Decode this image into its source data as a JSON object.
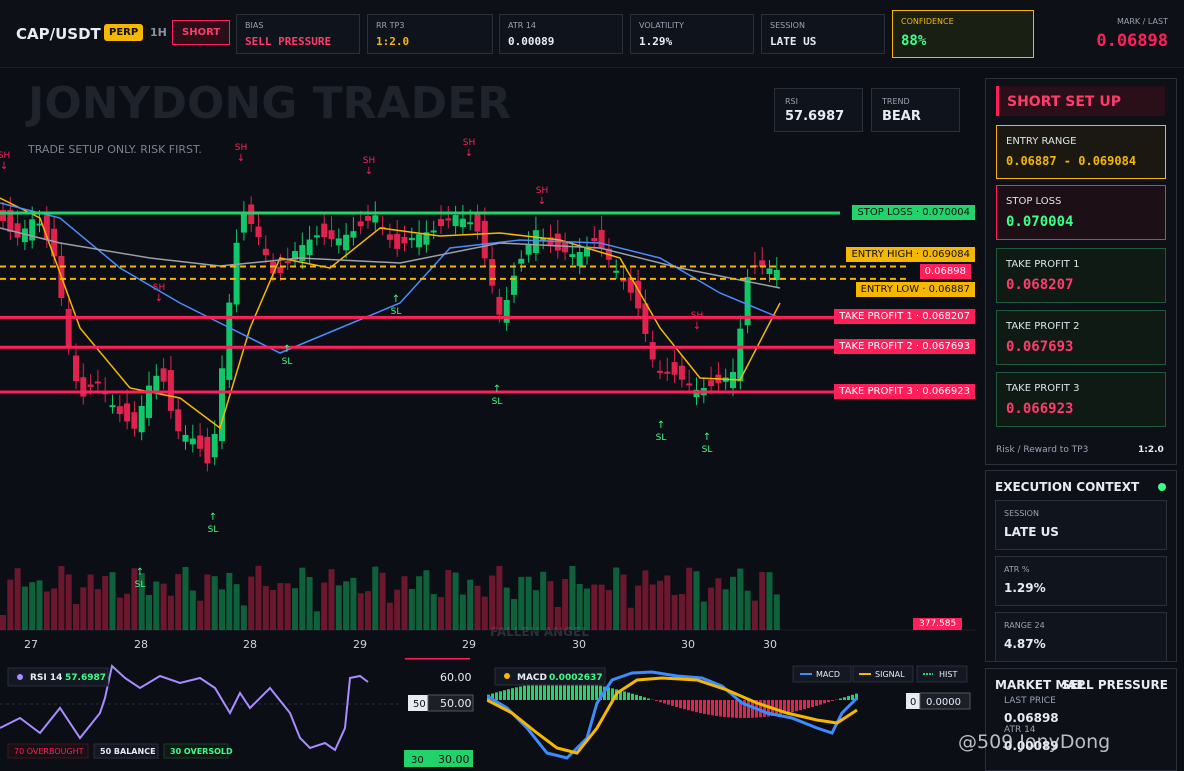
{
  "header": {
    "symbol": "CAP/USDT",
    "badge": "PERP",
    "timeframe": "1H",
    "side": "SHORT",
    "boxes": [
      {
        "label": "BIAS",
        "value": "SELL PRESSURE"
      },
      {
        "label": "RR TP3",
        "value": "1:2.0"
      },
      {
        "label": "ATR 14",
        "value": "0.00089"
      },
      {
        "label": "VOLATILITY",
        "value": "1.29%"
      },
      {
        "label": "SESSION",
        "value": "LATE US"
      }
    ],
    "confidence": {
      "label": "CONFIDENCE",
      "value": "88%"
    },
    "mark": {
      "label": "MARK / LAST",
      "value": "0.06898"
    }
  },
  "chart": {
    "watermark": "JONYDONG TRADER",
    "subtitle": "TRADE SETUP ONLY. RISK FIRST.",
    "rsi": {
      "label": "RSI",
      "value": "57.6987"
    },
    "trend": {
      "label": "TREND",
      "value": "BEAR"
    },
    "levels": [
      {
        "name": "STOP LOSS",
        "value": 0.070004,
        "color": "#22d36b"
      },
      {
        "name": "ENTRY HIGH",
        "value": 0.069084,
        "color": "#f5b700"
      },
      {
        "name": null,
        "value": 0.06898,
        "color": "#ff1f5a"
      },
      {
        "name": "ENTRY LOW",
        "value": 0.06887,
        "color": "#f5b700"
      },
      {
        "name": "TAKE PROFIT 1",
        "value": 0.068207,
        "color": "#ff1f5a"
      },
      {
        "name": "TAKE PROFIT 2",
        "value": 0.067693,
        "color": "#ff1f5a"
      },
      {
        "name": "TAKE PROFIT 3",
        "value": 0.066923,
        "color": "#ff1f5a"
      }
    ],
    "markers": [
      "SH",
      "SH",
      "SH",
      "SH",
      "SH",
      "SH",
      "SH",
      "SL",
      "SL",
      "SL",
      "SL",
      "SL",
      "SL",
      "SL"
    ],
    "volume_label": "377.585",
    "footer_text": "FALLEN ANGEL",
    "x_labels": [
      "27",
      "28",
      "28",
      "29",
      "29",
      "30",
      "30",
      "30"
    ]
  },
  "panel": {
    "title": "SHORT SET UP",
    "entry": {
      "label": "ENTRY RANGE",
      "value": "0.06887 - 0.069084"
    },
    "stop": {
      "label": "STOP LOSS",
      "value": "0.070004"
    },
    "tps": [
      {
        "label": "TAKE PROFIT 1",
        "value": "0.068207"
      },
      {
        "label": "TAKE PROFIT 2",
        "value": "0.067693"
      },
      {
        "label": "TAKE PROFIT 3",
        "value": "0.066923"
      }
    ],
    "rr": {
      "label": "Risk / Reward to TP3",
      "value": "1:2.0"
    }
  },
  "context": {
    "title": "EXECUTION CONTEXT",
    "items": [
      {
        "label": "SESSION",
        "value": "LATE US"
      },
      {
        "label": "ATR %",
        "value": "1.29%"
      },
      {
        "label": "RANGE 24",
        "value": "4.87%"
      }
    ]
  },
  "market_map": {
    "title": "MARKET MAP",
    "status": "SELL PRESSURE",
    "last_label": "LAST PRICE",
    "last_value": "0.06898",
    "atr_label": "ATR 14",
    "atr_value": "0.00089"
  },
  "rsi_panel": {
    "title": "RSI 14",
    "value": "57.6987",
    "axis": [
      "60.00",
      "50.00",
      "30.00"
    ],
    "badges": [
      "50",
      "30"
    ],
    "legend": [
      "70 OVERBOUGHT",
      "50 BALANCE",
      "30 OVERSOLD"
    ]
  },
  "macd_panel": {
    "title": "MACD",
    "value": "0.0002637",
    "legend": [
      "MACD",
      "SIGNAL",
      "HIST"
    ],
    "zero_badge": "0",
    "zero_value": "0.0000"
  },
  "watermark": "@509 JonyDong"
}
